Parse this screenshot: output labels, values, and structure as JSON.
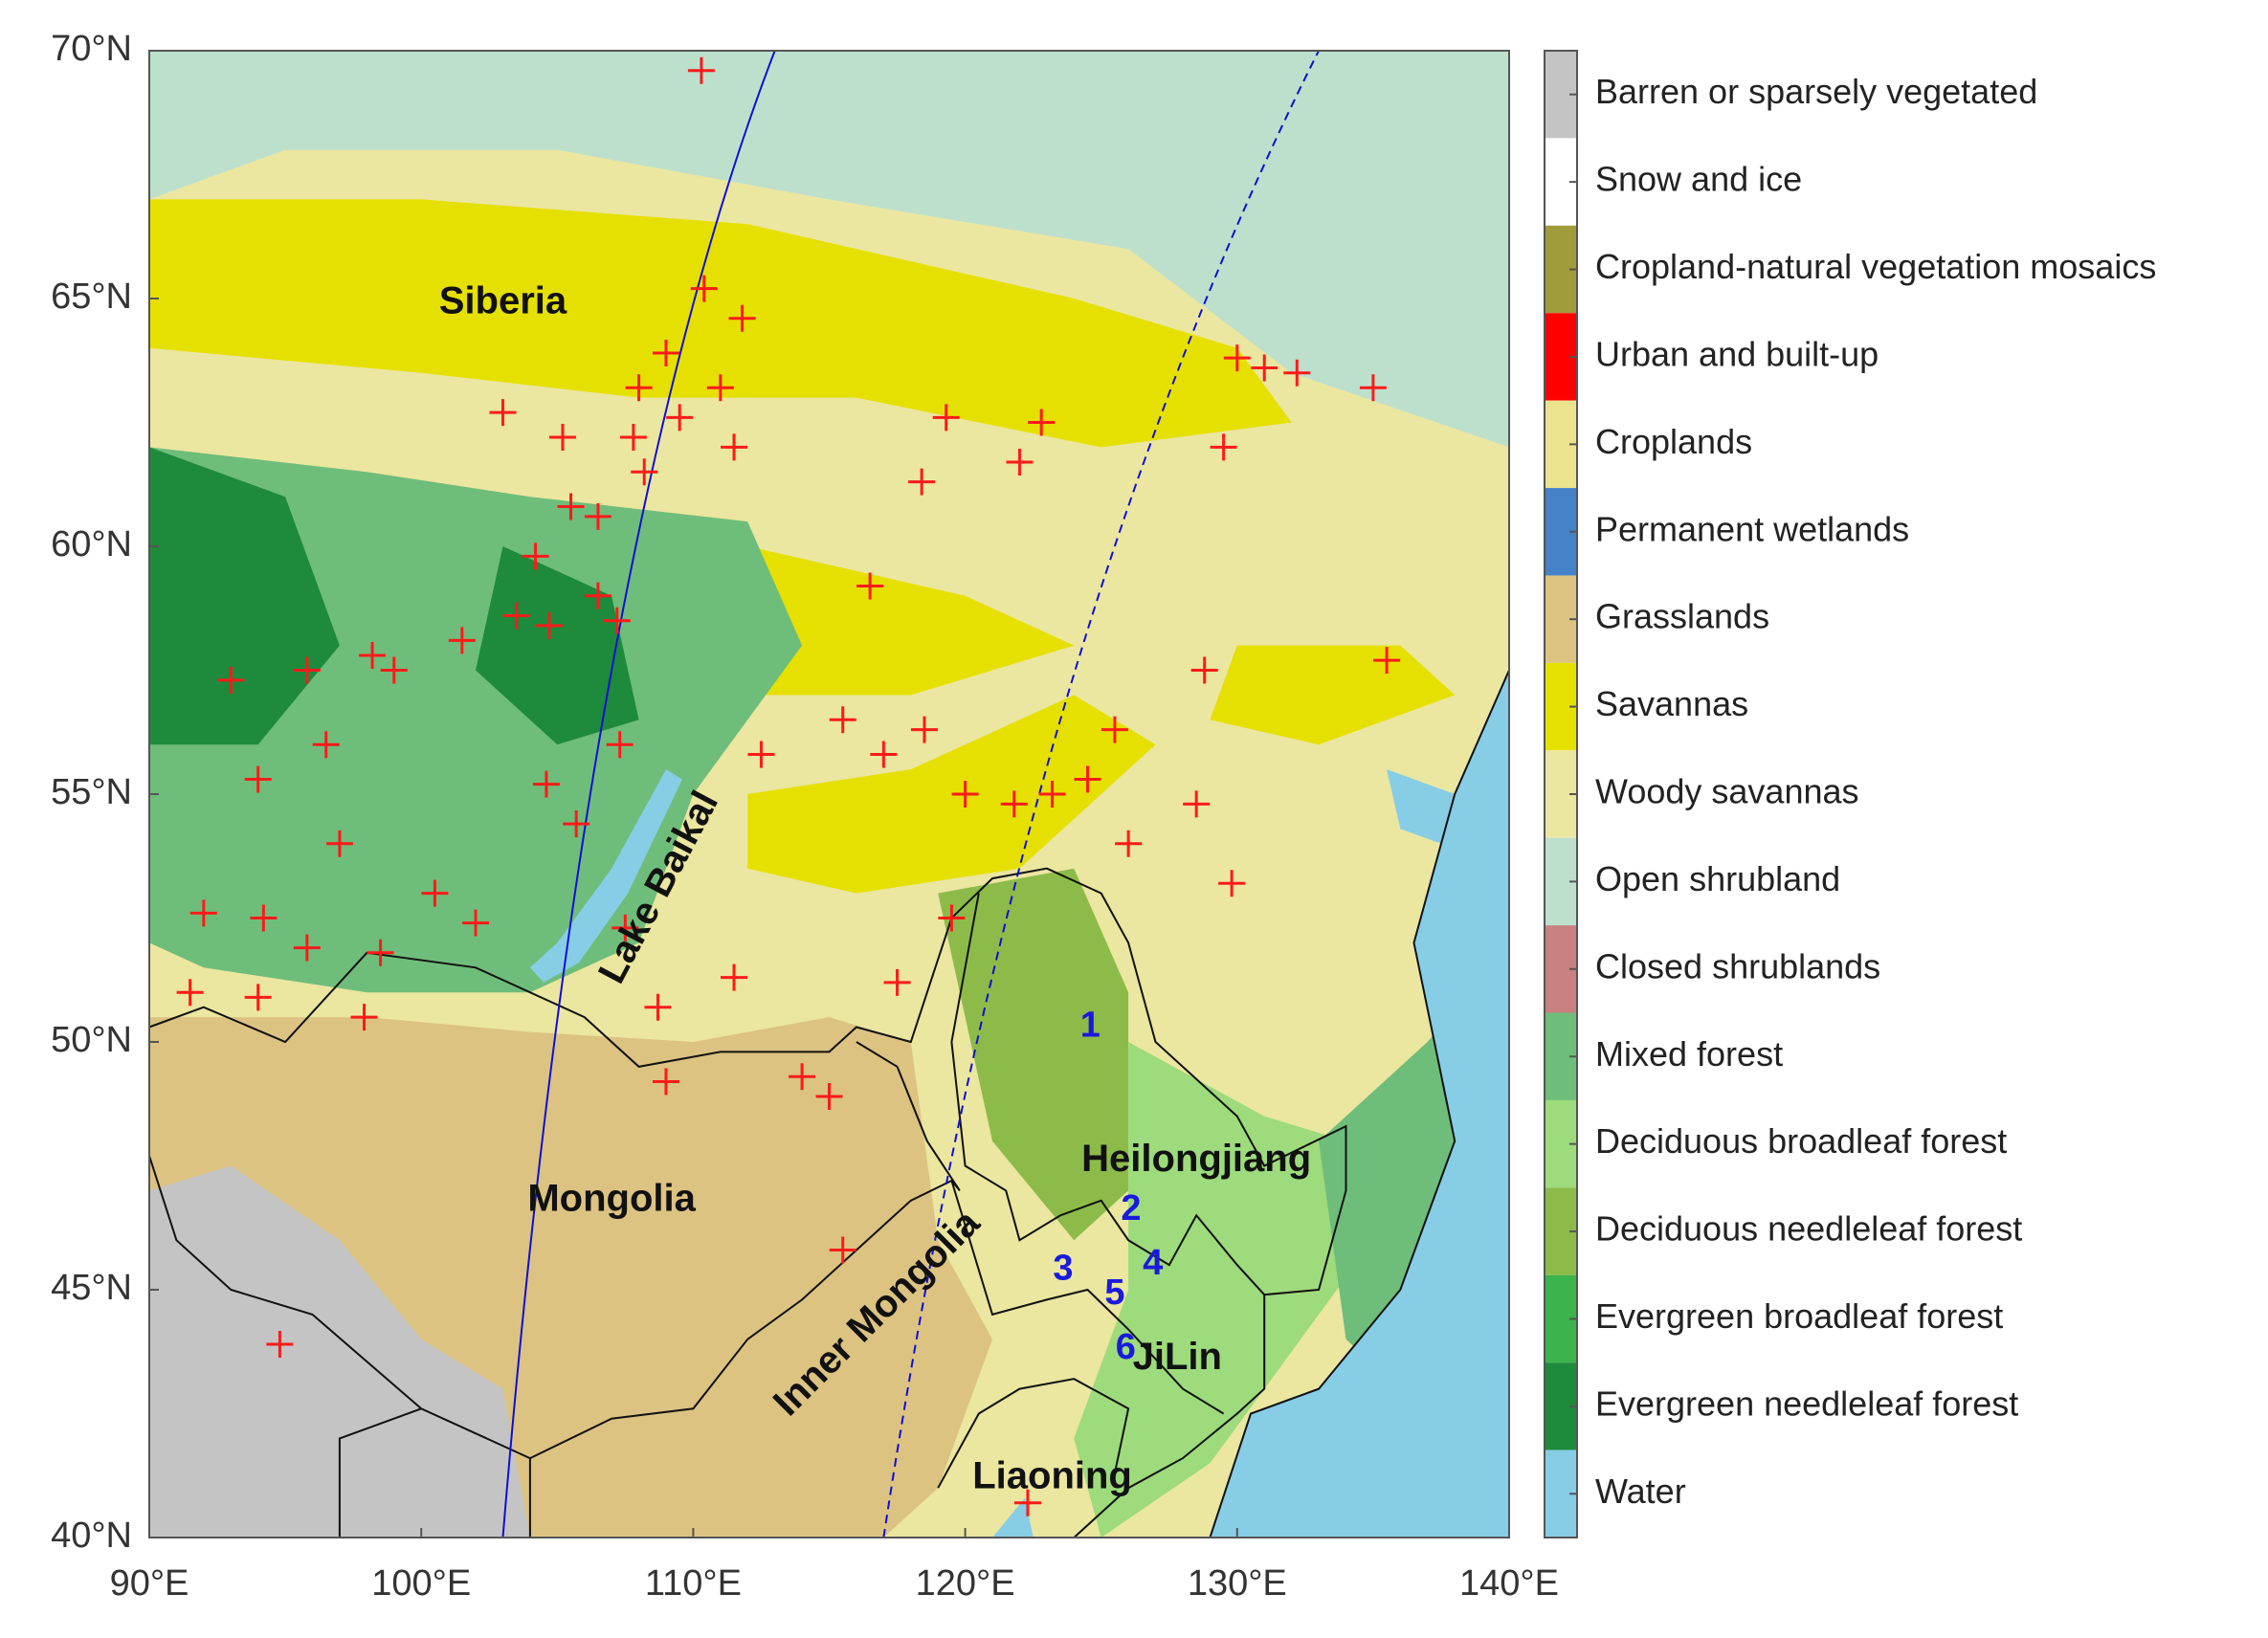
{
  "chart_data": {
    "type": "map",
    "xlim": [
      90,
      140
    ],
    "ylim": [
      40,
      70
    ],
    "xticks": [
      {
        "value": 90,
        "label": "90°E"
      },
      {
        "value": 100,
        "label": "100°E"
      },
      {
        "value": 110,
        "label": "110°E"
      },
      {
        "value": 120,
        "label": "120°E"
      },
      {
        "value": 130,
        "label": "130°E"
      },
      {
        "value": 140,
        "label": "140°E"
      }
    ],
    "yticks": [
      {
        "value": 40,
        "label": "40°N"
      },
      {
        "value": 45,
        "label": "45°N"
      },
      {
        "value": 50,
        "label": "50°N"
      },
      {
        "value": 55,
        "label": "55°N"
      },
      {
        "value": 60,
        "label": "60°N"
      },
      {
        "value": 65,
        "label": "65°N"
      },
      {
        "value": 70,
        "label": "70°N"
      }
    ],
    "legend": [
      {
        "name": "Barren or sparsely vegetated",
        "color": "#c4c4c4"
      },
      {
        "name": "Snow and ice",
        "color": "#ffffff"
      },
      {
        "name": "Cropland-natural vegetation mosaics",
        "color": "#a09c3c"
      },
      {
        "name": "Urban and built-up",
        "color": "#ff0000"
      },
      {
        "name": "Croplands",
        "color": "#ebe38e"
      },
      {
        "name": "Permanent wetlands",
        "color": "#4682c8"
      },
      {
        "name": "Grasslands",
        "color": "#dcc382"
      },
      {
        "name": "Savannas",
        "color": "#e6e000"
      },
      {
        "name": "Woody savannas",
        "color": "#ebe6a0"
      },
      {
        "name": "Open shrubland",
        "color": "#bde0cd"
      },
      {
        "name": "Closed shrublands",
        "color": "#c88080"
      },
      {
        "name": "Mixed forest",
        "color": "#6fbd7a"
      },
      {
        "name": "Deciduous broadleaf forest",
        "color": "#9ddb7c"
      },
      {
        "name": "Deciduous needleleaf forest",
        "color": "#8dbb4a"
      },
      {
        "name": "Evergreen broadleaf forest",
        "color": "#3cb44b"
      },
      {
        "name": "Evergreen needleleaf forest",
        "color": "#1e8a3c"
      },
      {
        "name": "Water",
        "color": "#87cde6"
      }
    ],
    "place_labels": [
      "Siberia",
      "Mongolia",
      "Lake Baikal",
      "Inner Mongolia",
      "Heilongjiang",
      "JiLin",
      "Liaoning"
    ],
    "sites": [
      "1",
      "2",
      "3",
      "4",
      "5",
      "6"
    ],
    "fire_points": {
      "color": "#ff1a1a",
      "lon": [
        110.3,
        110.4,
        111.8,
        109,
        108,
        111,
        109.5,
        107.8,
        105.2,
        103,
        111.5,
        108.2,
        105.5,
        106.5,
        104.2,
        104.7,
        106.5,
        107.2,
        103.5,
        101.5,
        99,
        98.2,
        95.8,
        93,
        96.5,
        94,
        97,
        92,
        94.2,
        95.8,
        98.5,
        97.9,
        91.5,
        94,
        100.5,
        102,
        104.6,
        105.7,
        107.3,
        107.5,
        108.7,
        109,
        111.5,
        112.5,
        114,
        115.5,
        117,
        118.5,
        120,
        121.8,
        123.2,
        124.5,
        122,
        122.8,
        119.3,
        118.4,
        116.5,
        125.5,
        126,
        128.8,
        128.5,
        130,
        131,
        132.2,
        129.5,
        135,
        135.5,
        129.8,
        115.5,
        94.8,
        122.3,
        119.5,
        117.5,
        115
      ],
      "lat": [
        69.6,
        65.2,
        64.6,
        63.9,
        63.2,
        63.2,
        62.6,
        62.2,
        62.2,
        62.7,
        62,
        61.5,
        60.8,
        60.6,
        59.8,
        58.4,
        59,
        58.5,
        58.6,
        58.1,
        57.5,
        57.8,
        57.5,
        57.3,
        56,
        55.3,
        54,
        52.6,
        52.5,
        51.9,
        51.8,
        50.5,
        51,
        50.9,
        53,
        52.4,
        55.2,
        54.4,
        56,
        52.3,
        50.7,
        49.2,
        51.3,
        55.8,
        49.3,
        56.5,
        55.8,
        56.3,
        55,
        54.8,
        55,
        55.3,
        61.7,
        62.5,
        62.6,
        61.3,
        59.2,
        56.3,
        54,
        57.5,
        54.8,
        63.8,
        63.6,
        63.5,
        62,
        63.2,
        57.7,
        53.2,
        45.8,
        43.9,
        40.7,
        52.5,
        51.2,
        48.9
      ]
    }
  }
}
